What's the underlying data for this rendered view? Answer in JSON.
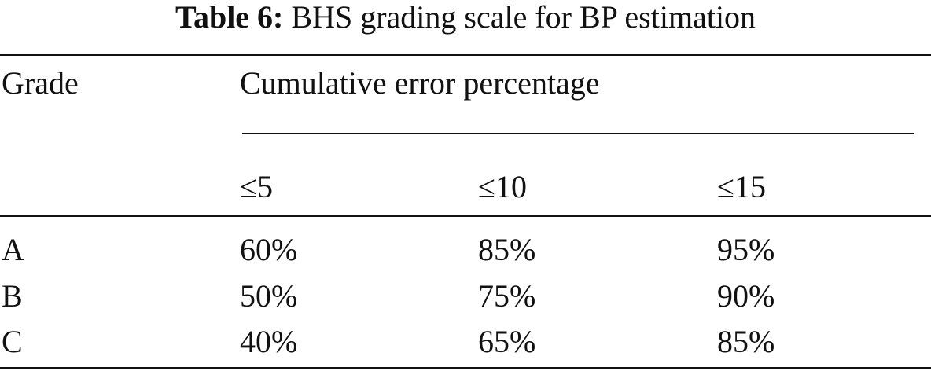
{
  "caption": {
    "label": "Table 6:",
    "text": "BHS grading scale for BP estimation"
  },
  "table": {
    "header": {
      "grade": "Grade",
      "group": "Cumulative error percentage",
      "subheaders": [
        "≤5",
        "≤10",
        "≤15"
      ]
    },
    "rows": [
      [
        "A",
        "60%",
        "85%",
        "95%"
      ],
      [
        "B",
        "50%",
        "75%",
        "90%"
      ],
      [
        "C",
        "40%",
        "65%",
        "85%"
      ]
    ]
  }
}
